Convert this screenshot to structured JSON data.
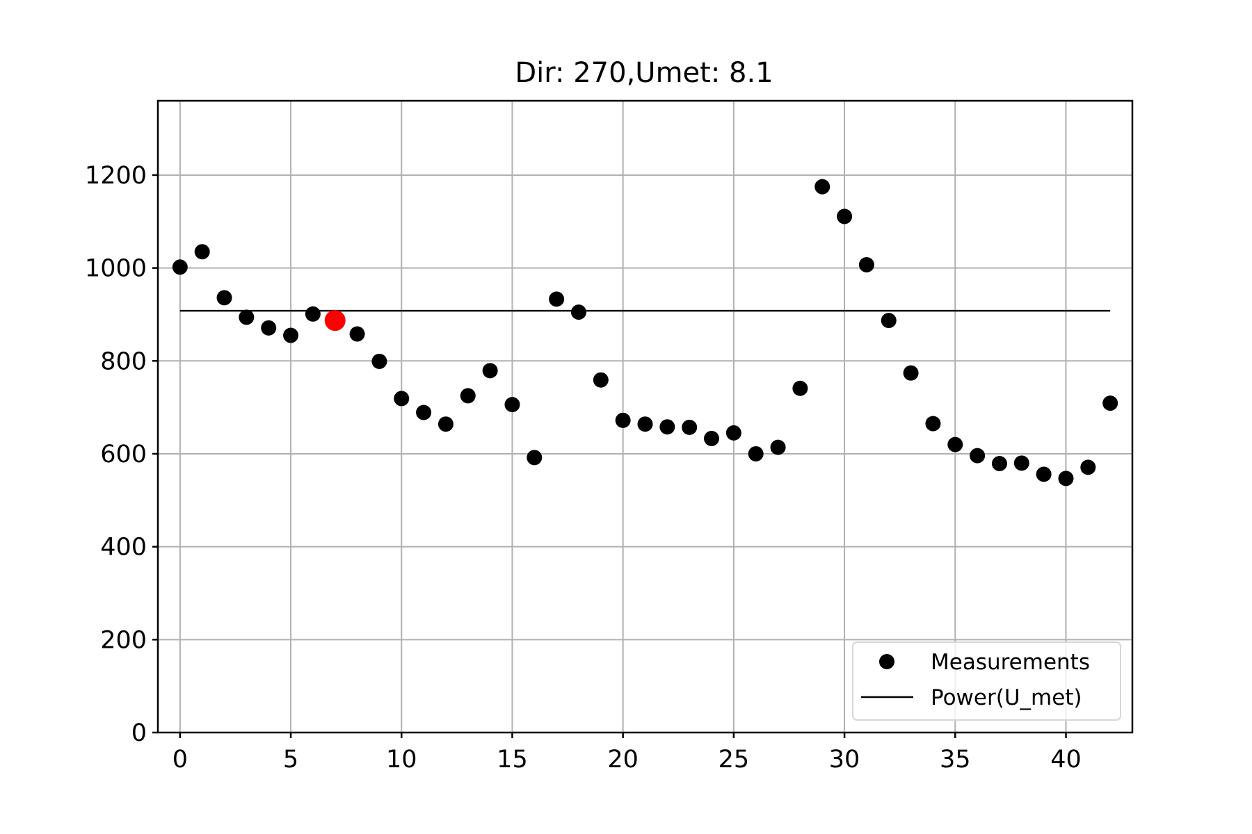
{
  "chart_data": {
    "type": "scatter",
    "title": "Dir: 270,Umet: 8.1",
    "xlabel": "",
    "ylabel": "",
    "xlim": [
      -1,
      43
    ],
    "ylim": [
      0,
      1360
    ],
    "grid": true,
    "legend_position": "bottom-right",
    "x_ticks": [
      0,
      5,
      10,
      15,
      20,
      25,
      30,
      35,
      40
    ],
    "x_tick_labels": [
      "0",
      "5",
      "10",
      "15",
      "20",
      "25",
      "30",
      "35",
      "40"
    ],
    "y_ticks": [
      0,
      200,
      400,
      600,
      800,
      1000,
      1200
    ],
    "y_tick_labels": [
      "0",
      "200",
      "400",
      "600",
      "800",
      "1000",
      "1200"
    ],
    "highlight_index": 7,
    "highlight_color": "#ff0000",
    "series": [
      {
        "name": "Measurements",
        "kind": "scatter",
        "color": "#000000",
        "x": [
          0,
          1,
          2,
          3,
          4,
          5,
          6,
          7,
          8,
          9,
          10,
          11,
          12,
          13,
          14,
          15,
          16,
          17,
          18,
          19,
          20,
          21,
          22,
          23,
          24,
          25,
          26,
          27,
          28,
          29,
          30,
          31,
          32,
          33,
          34,
          35,
          36,
          37,
          38,
          39,
          40,
          41,
          42
        ],
        "y": [
          1002,
          1035,
          936,
          894,
          871,
          855,
          901,
          887,
          858,
          799,
          719,
          689,
          664,
          725,
          779,
          706,
          592,
          933,
          905,
          759,
          672,
          664,
          658,
          657,
          633,
          645,
          600,
          614,
          741,
          1175,
          1111,
          1007,
          887,
          774,
          665,
          620,
          596,
          579,
          580,
          556,
          547,
          571,
          709
        ]
      },
      {
        "name": "Power(U_met)",
        "kind": "line",
        "color": "#000000",
        "x": [
          0,
          42
        ],
        "y": [
          908,
          908
        ]
      }
    ]
  }
}
